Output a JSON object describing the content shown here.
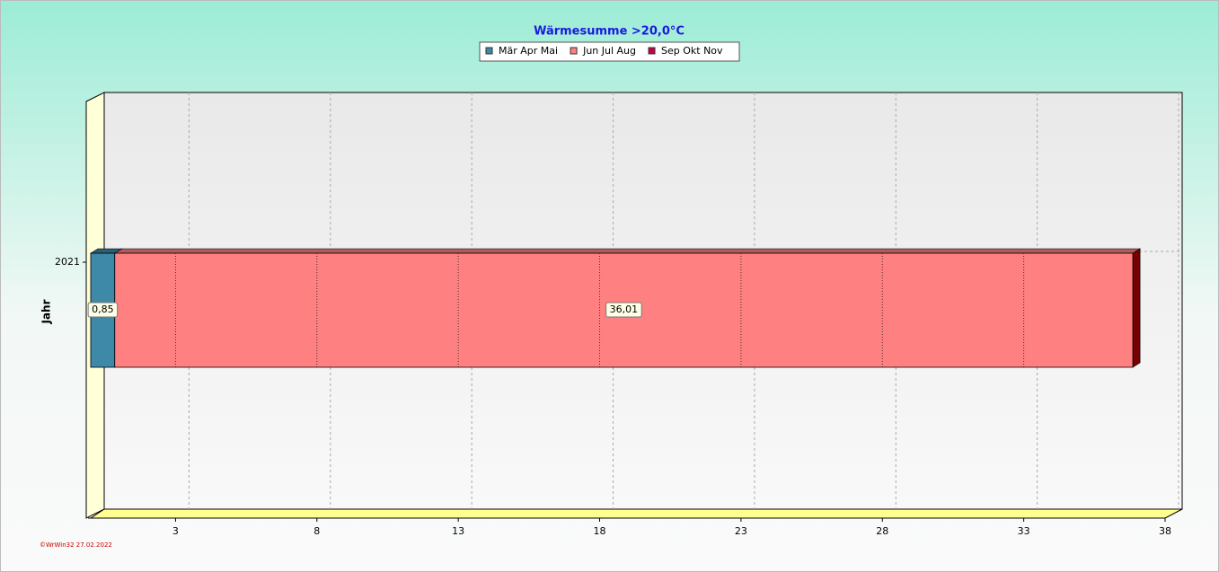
{
  "chart_data": {
    "type": "bar",
    "orientation": "horizontal",
    "stacked": true,
    "title": "Wärmesumme  >20,0°C",
    "y_label": "Jahr",
    "footer": "©WrWin32  27.02.2022",
    "categories": [
      "2021"
    ],
    "series": [
      {
        "name": "Mär Apr Mai",
        "color": "#3e88a8",
        "values": [
          0.85
        ],
        "value_labels": [
          "0,85"
        ]
      },
      {
        "name": "Jun Jul Aug",
        "color": "#ff8080",
        "values": [
          36.01
        ],
        "value_labels": [
          "36,01"
        ]
      },
      {
        "name": "Sep Okt Nov",
        "color": "#c8004a",
        "values": [
          0
        ]
      }
    ],
    "xlim": [
      0,
      38
    ],
    "xticks": [
      3,
      8,
      13,
      18,
      23,
      28,
      33,
      38
    ],
    "grid": true
  }
}
